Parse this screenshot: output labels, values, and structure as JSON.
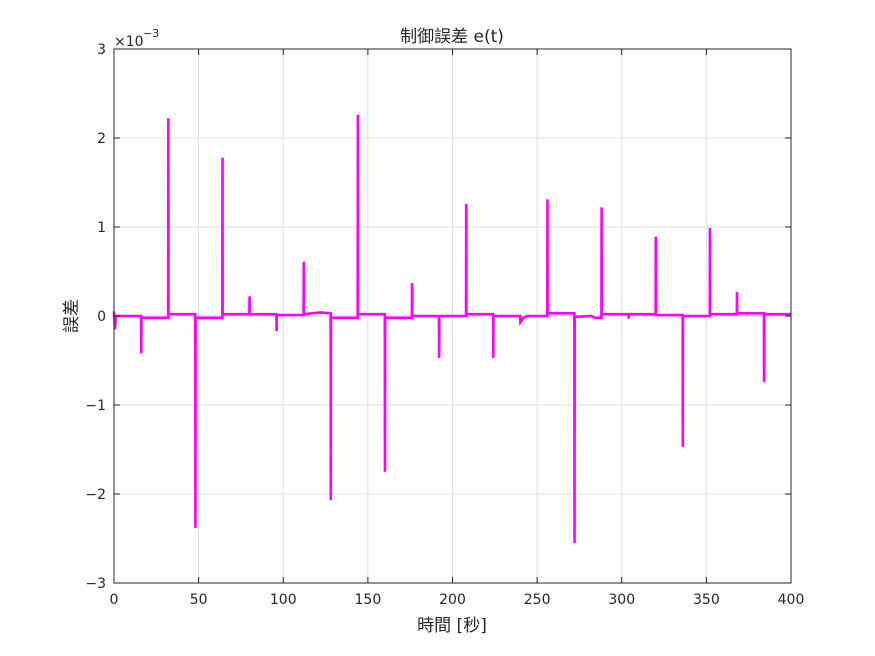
{
  "chart_data": {
    "type": "line",
    "title": "制御誤差 e(t)",
    "xlabel": "時間 [秒]",
    "ylabel": "誤差",
    "exponent_base": "×10",
    "exponent_power": "−3",
    "xlim": [
      0,
      400
    ],
    "ylim": [
      -3,
      3
    ],
    "x_ticks": [
      0,
      50,
      100,
      150,
      200,
      250,
      300,
      350,
      400
    ],
    "y_ticks": [
      -3,
      -2,
      -1,
      0,
      1,
      2,
      3
    ],
    "y_tick_labels": [
      "−3",
      "−2",
      "−1",
      "0",
      "1",
      "2",
      "3"
    ],
    "grid": true,
    "line_color": "#ff00ff",
    "series": [
      {
        "values_unit": "×10^-3",
        "points": [
          [
            0,
            0.05
          ],
          [
            0.6,
            -0.15
          ],
          [
            1.2,
            0
          ],
          [
            16,
            0
          ],
          [
            16.1,
            -0.42
          ],
          [
            16.2,
            -0.02
          ],
          [
            32,
            -0.02
          ],
          [
            32.1,
            2.22
          ],
          [
            32.2,
            0.02
          ],
          [
            48,
            0.02
          ],
          [
            48.1,
            -2.38
          ],
          [
            48.2,
            -0.02
          ],
          [
            64,
            -0.02
          ],
          [
            64.1,
            1.78
          ],
          [
            64.2,
            0.02
          ],
          [
            80,
            0.02
          ],
          [
            80.1,
            0.22
          ],
          [
            80.2,
            0.02
          ],
          [
            96,
            0.02
          ],
          [
            96.1,
            -0.17
          ],
          [
            96.2,
            0.01
          ],
          [
            112,
            0.01
          ],
          [
            112.1,
            0.61
          ],
          [
            112.2,
            0.02
          ],
          [
            122,
            0.04
          ],
          [
            128,
            0.03
          ],
          [
            128.1,
            -2.07
          ],
          [
            128.2,
            -0.02
          ],
          [
            144,
            -0.02
          ],
          [
            144.1,
            2.26
          ],
          [
            144.2,
            0.02
          ],
          [
            160,
            0.02
          ],
          [
            160.1,
            -1.75
          ],
          [
            160.2,
            -0.02
          ],
          [
            176,
            -0.02
          ],
          [
            176.1,
            0.37
          ],
          [
            176.2,
            0.0
          ],
          [
            192,
            0.0
          ],
          [
            192.1,
            -0.47
          ],
          [
            192.2,
            0.0
          ],
          [
            208,
            0.0
          ],
          [
            208.1,
            1.26
          ],
          [
            208.2,
            0.02
          ],
          [
            224,
            0.02
          ],
          [
            224.1,
            -0.47
          ],
          [
            224.2,
            0.0
          ],
          [
            240,
            0.0
          ],
          [
            240.1,
            -0.07
          ],
          [
            242,
            -0.02
          ],
          [
            244,
            0.0
          ],
          [
            256,
            0.0
          ],
          [
            256.1,
            1.31
          ],
          [
            256.2,
            0.03
          ],
          [
            272,
            0.03
          ],
          [
            272.1,
            -2.55
          ],
          [
            272.2,
            -0.01
          ],
          [
            282,
            0.0
          ],
          [
            284,
            -0.02
          ],
          [
            288,
            -0.02
          ],
          [
            288.1,
            1.22
          ],
          [
            288.2,
            0.02
          ],
          [
            304,
            0.02
          ],
          [
            304.1,
            -0.03
          ],
          [
            304.2,
            0.02
          ],
          [
            320,
            0.02
          ],
          [
            320.1,
            0.89
          ],
          [
            320.2,
            0.01
          ],
          [
            336,
            0.01
          ],
          [
            336.1,
            -1.47
          ],
          [
            336.2,
            0.0
          ],
          [
            352,
            0.0
          ],
          [
            352.1,
            0.99
          ],
          [
            352.2,
            0.02
          ],
          [
            368,
            0.02
          ],
          [
            368.1,
            0.27
          ],
          [
            368.2,
            0.03
          ],
          [
            384,
            0.03
          ],
          [
            384.1,
            -0.74
          ],
          [
            384.2,
            0.02
          ],
          [
            400,
            0.02
          ]
        ]
      }
    ]
  }
}
